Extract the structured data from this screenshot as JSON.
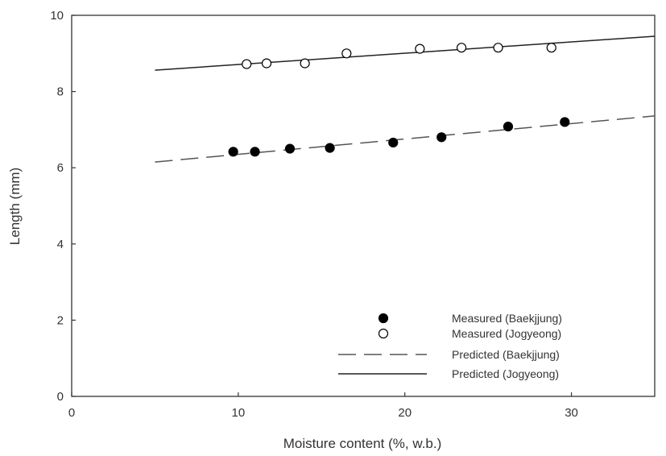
{
  "chart_data": {
    "type": "scatter",
    "title": "",
    "xlabel": "Moisture content (%, w.b.)",
    "ylabel": "Length (mm)",
    "xlim": [
      0,
      35
    ],
    "ylim": [
      0,
      10
    ],
    "xticks": [
      0,
      10,
      20,
      30
    ],
    "yticks": [
      0,
      2,
      4,
      6,
      8,
      10
    ],
    "grid": false,
    "legend_position": "bottom-right",
    "series": [
      {
        "name": "Measured (Baekjjung)",
        "kind": "points",
        "marker": "filled-circle",
        "color": "#000000",
        "x": [
          9.7,
          11.0,
          13.1,
          15.5,
          19.3,
          22.2,
          26.2,
          29.6
        ],
        "y": [
          6.42,
          6.42,
          6.5,
          6.52,
          6.66,
          6.8,
          7.08,
          7.2
        ]
      },
      {
        "name": "Measured (Jogyeong)",
        "kind": "points",
        "marker": "open-circle",
        "color": "#000000",
        "x": [
          10.5,
          11.7,
          14.0,
          16.5,
          20.9,
          23.4,
          25.6,
          28.8
        ],
        "y": [
          8.72,
          8.74,
          8.74,
          9.0,
          9.12,
          9.15,
          9.15,
          9.15
        ]
      },
      {
        "name": "Predicted (Baekjjung)",
        "kind": "line",
        "dash": "long-dash",
        "color": "#555555",
        "x": [
          5,
          35
        ],
        "y": [
          6.15,
          7.36
        ]
      },
      {
        "name": "Predicted (Jogyeong)",
        "kind": "line",
        "dash": "solid",
        "color": "#222222",
        "x": [
          5,
          35
        ],
        "y": [
          8.56,
          9.45
        ]
      }
    ]
  }
}
